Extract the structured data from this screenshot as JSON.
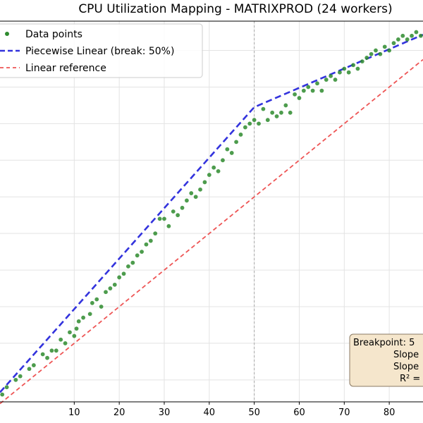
{
  "chart_data": {
    "type": "scatter",
    "title": "CPU Utilization Mapping - MATRIXPROD (24 workers)",
    "xlabel": "",
    "ylabel": "",
    "xlim": [
      -6.5,
      87.5
    ],
    "ylim": [
      -6,
      98
    ],
    "x_ticks": [
      10,
      20,
      30,
      40,
      50,
      60,
      70,
      80
    ],
    "grid": true,
    "legend_position": "top-left",
    "break_x": 50,
    "series": [
      {
        "name": "Data points",
        "kind": "scatter",
        "color": "#2e8b2e",
        "x": [
          -6,
          -5,
          -3,
          -2,
          0,
          1,
          3,
          4,
          5,
          6,
          7,
          8,
          9,
          10,
          10.5,
          11,
          12,
          13.5,
          14,
          15,
          16,
          17,
          18,
          19,
          20,
          21,
          22,
          23,
          24,
          25,
          26,
          27,
          28,
          29,
          30,
          31,
          32,
          33,
          34,
          35,
          36,
          37,
          38,
          39,
          40,
          41,
          42,
          43,
          44,
          45,
          46,
          47,
          48,
          49,
          50,
          51,
          52,
          53,
          54,
          55,
          56,
          57,
          58,
          59,
          60,
          61,
          62,
          63,
          64,
          65,
          66,
          67,
          68,
          69,
          70,
          71,
          72,
          73,
          74,
          75,
          76,
          77,
          78,
          79,
          80,
          81,
          82,
          83,
          84,
          85,
          86,
          87
        ],
        "y": [
          -4,
          -2,
          0,
          1,
          3,
          4,
          7,
          6,
          8,
          8,
          11,
          10,
          13,
          12,
          14,
          16,
          17,
          18,
          21,
          22,
          20,
          24,
          25,
          26,
          28,
          29,
          31,
          32,
          34,
          35,
          37,
          38,
          40,
          44,
          44,
          42,
          46,
          45,
          47,
          49,
          51,
          50,
          52,
          54,
          56,
          58,
          57,
          60,
          63,
          62,
          65,
          67,
          69,
          70,
          71,
          70,
          74,
          71,
          73,
          72,
          73,
          75,
          73,
          78,
          77,
          79,
          80,
          79,
          81,
          79,
          82,
          83,
          82,
          84,
          85,
          84,
          86,
          85,
          87,
          88,
          89,
          90,
          89,
          91,
          90,
          92,
          93,
          94,
          93,
          94,
          95,
          94
        ]
      },
      {
        "name": "Piecewise Linear (break: 50%)",
        "kind": "line",
        "style": "dashed",
        "color": "#3333dd",
        "x": [
          -6.5,
          50,
          87.5
        ],
        "y": [
          -3.4,
          74.5,
          94.3
        ]
      },
      {
        "name": "Linear reference",
        "kind": "line",
        "style": "dashed",
        "color": "#ee5555",
        "x": [
          -6.5,
          87.5
        ],
        "y": [
          -6.5,
          87.5
        ]
      }
    ],
    "annotation_lines": [
      "Breakpoint: 5",
      "Slope",
      "Slope",
      "R² ="
    ]
  }
}
